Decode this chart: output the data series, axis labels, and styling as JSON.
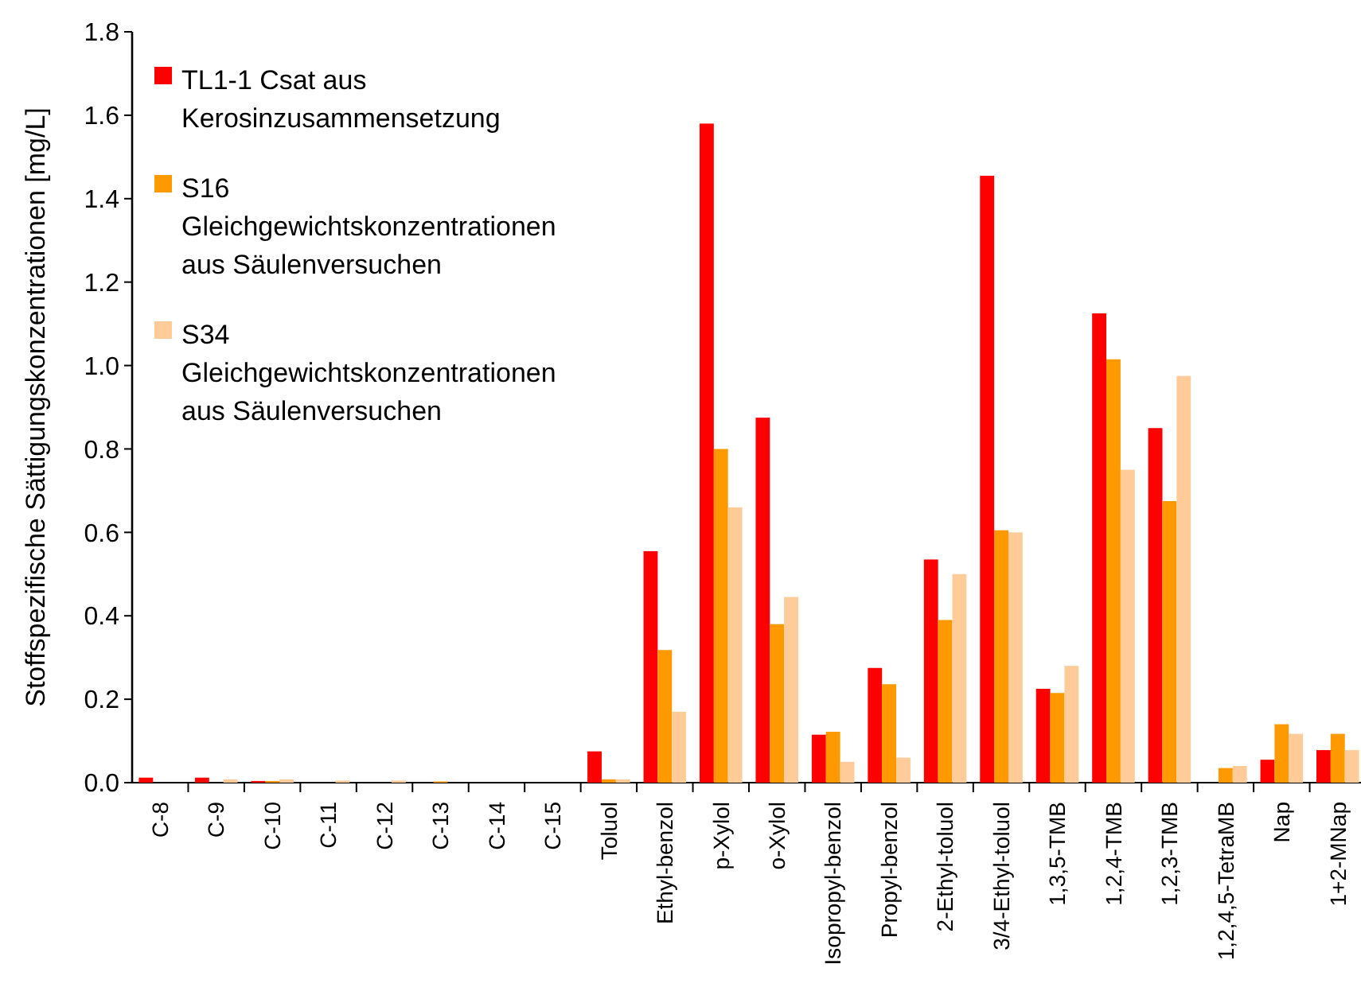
{
  "chart_data": {
    "type": "bar",
    "ylabel": "Stoffspezifische Sättigungskonzentrationen [mg/L]",
    "categories": [
      "C-8",
      "C-9",
      "C-10",
      "C-11",
      "C-12",
      "C-13",
      "C-14",
      "C-15",
      "Toluol",
      "Ethyl-benzol",
      "p-Xylol",
      "o-Xylol",
      "Isopropyl-benzol",
      "Propyl-benzol",
      "2-Ethyl-toluol",
      "3/4-Ethyl-toluol",
      "1,3,5-TMB",
      "1,2,4-TMB",
      "1,2,3-TMB",
      "1,2,4,5-TetraMB",
      "Nap",
      "1+2-MNap"
    ],
    "series": [
      {
        "name": "TL1-1 Csat aus Kerosinzusammensetzung",
        "color": "#ff0000",
        "values": [
          0.012,
          0.012,
          0.004,
          0,
          0,
          0,
          0,
          0,
          0.075,
          0.555,
          1.58,
          0.875,
          0.115,
          0.275,
          0.535,
          1.455,
          0.225,
          1.125,
          0.85,
          0,
          0.055,
          0.078
        ]
      },
      {
        "name": "S16 Gleichgewichtskonzentrationen aus Säulenversuchen",
        "color": "#ff9900",
        "values": [
          0,
          0,
          0.004,
          0,
          0,
          0.003,
          0,
          0,
          0.008,
          0.318,
          0.8,
          0.38,
          0.122,
          0.236,
          0.39,
          0.605,
          0.215,
          1.015,
          0.675,
          0.035,
          0.14,
          0.117
        ]
      },
      {
        "name": "S34 Gleichgewichtskonzentrationen aus Säulenversuchen",
        "color": "#ffcc99",
        "values": [
          0,
          0.008,
          0.008,
          0.005,
          0.005,
          0,
          0,
          0,
          0.008,
          0.17,
          0.66,
          0.445,
          0.05,
          0.06,
          0.5,
          0.6,
          0.28,
          0.75,
          0.975,
          0.04,
          0.117,
          0.078
        ]
      }
    ],
    "ylim": [
      0,
      1.8
    ],
    "yticks": [
      {
        "value": 0,
        "label": "0.0"
      },
      {
        "value": 0.2,
        "label": "0.2"
      },
      {
        "value": 0.4,
        "label": "0.4"
      },
      {
        "value": 0.6,
        "label": "0.6"
      },
      {
        "value": 0.8,
        "label": "0.8"
      },
      {
        "value": 1.0,
        "label": "1.0"
      },
      {
        "value": 1.2,
        "label": "1.2"
      },
      {
        "value": 1.4,
        "label": "1.4"
      },
      {
        "value": 1.6,
        "label": "1.6"
      },
      {
        "value": 1.8,
        "label": "1.8"
      }
    ],
    "grid": false,
    "legend": "top left"
  }
}
